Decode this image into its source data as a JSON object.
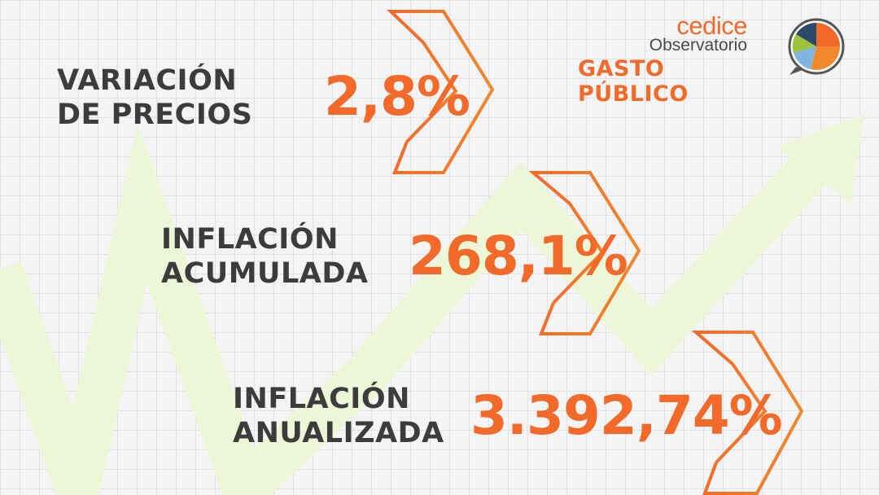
{
  "logo": {
    "brand": "cedice",
    "subtitle": "Observatorio",
    "title": "GASTO PÚBLICO"
  },
  "items": [
    {
      "label_line1": "VARIACIÓN",
      "label_line2": "DE PRECIOS",
      "value": "2,8%"
    },
    {
      "label_line1": "INFLACIÓN",
      "label_line2": "ACUMULADA",
      "value": "268,1%"
    },
    {
      "label_line1": "INFLACIÓN",
      "label_line2": "ANUALIZADA",
      "value": "3.392,74%"
    }
  ],
  "colors": {
    "accent": "#f26a2a",
    "text": "#3c3c3c",
    "trend": "#eef6d8",
    "background": "#f4f4f4"
  }
}
